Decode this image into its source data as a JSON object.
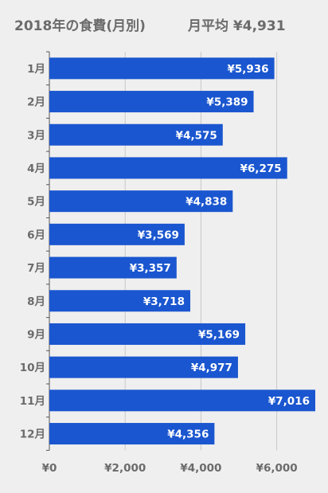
{
  "title": "2018年の食費(月別)",
  "average": "月平均 ¥4,931",
  "colors": {
    "bar": "#1a56cf",
    "background": "#efefef",
    "grid": "#c8c8c8",
    "text": "#6b6b6b",
    "bar_label": "#ffffff"
  },
  "chart_data": {
    "type": "bar",
    "orientation": "horizontal",
    "title": "2018年の食費(月別)",
    "subtitle": "月平均 ¥4,931",
    "categories": [
      "1月",
      "2月",
      "3月",
      "4月",
      "5月",
      "6月",
      "7月",
      "8月",
      "9月",
      "10月",
      "11月",
      "12月"
    ],
    "values": [
      5936,
      5389,
      4575,
      6275,
      4838,
      3569,
      3357,
      3718,
      5169,
      4977,
      7016,
      4356
    ],
    "value_labels": [
      "¥5,936",
      "¥5,389",
      "¥4,575",
      "¥6,275",
      "¥4,838",
      "¥3,569",
      "¥3,357",
      "¥3,718",
      "¥5,169",
      "¥4,977",
      "¥7,016",
      "¥4,356"
    ],
    "xlim": [
      0,
      7100
    ],
    "xticks": [
      0,
      2000,
      4000,
      6000
    ],
    "xtick_labels": [
      "¥0",
      "¥2,000",
      "¥4,000",
      "¥6,000"
    ],
    "xlabel": "",
    "ylabel": "",
    "grid": true,
    "legend": "none"
  }
}
